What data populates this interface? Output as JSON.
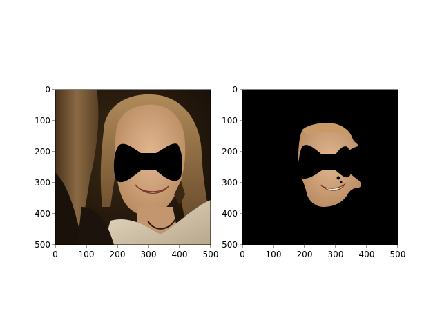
{
  "chart_data": [
    {
      "type": "image",
      "content": "photo of smiling woman with long brown hair, eyes covered by a black bow-tie shaped mask",
      "xlim": [
        0,
        500
      ],
      "ylim": [
        500,
        0
      ],
      "x_ticks": [
        0,
        100,
        200,
        300,
        400,
        500
      ],
      "y_ticks": [
        0,
        100,
        200,
        300,
        400,
        500
      ],
      "x_tick_labels": [
        "0",
        "100",
        "200",
        "300",
        "400",
        "500"
      ],
      "y_tick_labels": [
        "0",
        "100",
        "200",
        "300",
        "400",
        "500"
      ],
      "title": "",
      "xlabel": "",
      "ylabel": "",
      "grid": false
    },
    {
      "type": "image",
      "content": "segmented face region on black background with the same bow-tie shaped mask over the eyes",
      "xlim": [
        0,
        500
      ],
      "ylim": [
        500,
        0
      ],
      "x_ticks": [
        0,
        100,
        200,
        300,
        400,
        500
      ],
      "y_ticks": [
        0,
        100,
        200,
        300,
        400,
        500
      ],
      "x_tick_labels": [
        "0",
        "100",
        "200",
        "300",
        "400",
        "500"
      ],
      "y_tick_labels": [
        "0",
        "100",
        "200",
        "300",
        "400",
        "500"
      ],
      "title": "",
      "xlabel": "",
      "ylabel": "",
      "grid": false
    }
  ],
  "colors": {
    "background": "#ffffff",
    "axes": "#000000",
    "mask": "#000000",
    "skin": "#c8a07a",
    "hair": "#6b4a2a"
  }
}
